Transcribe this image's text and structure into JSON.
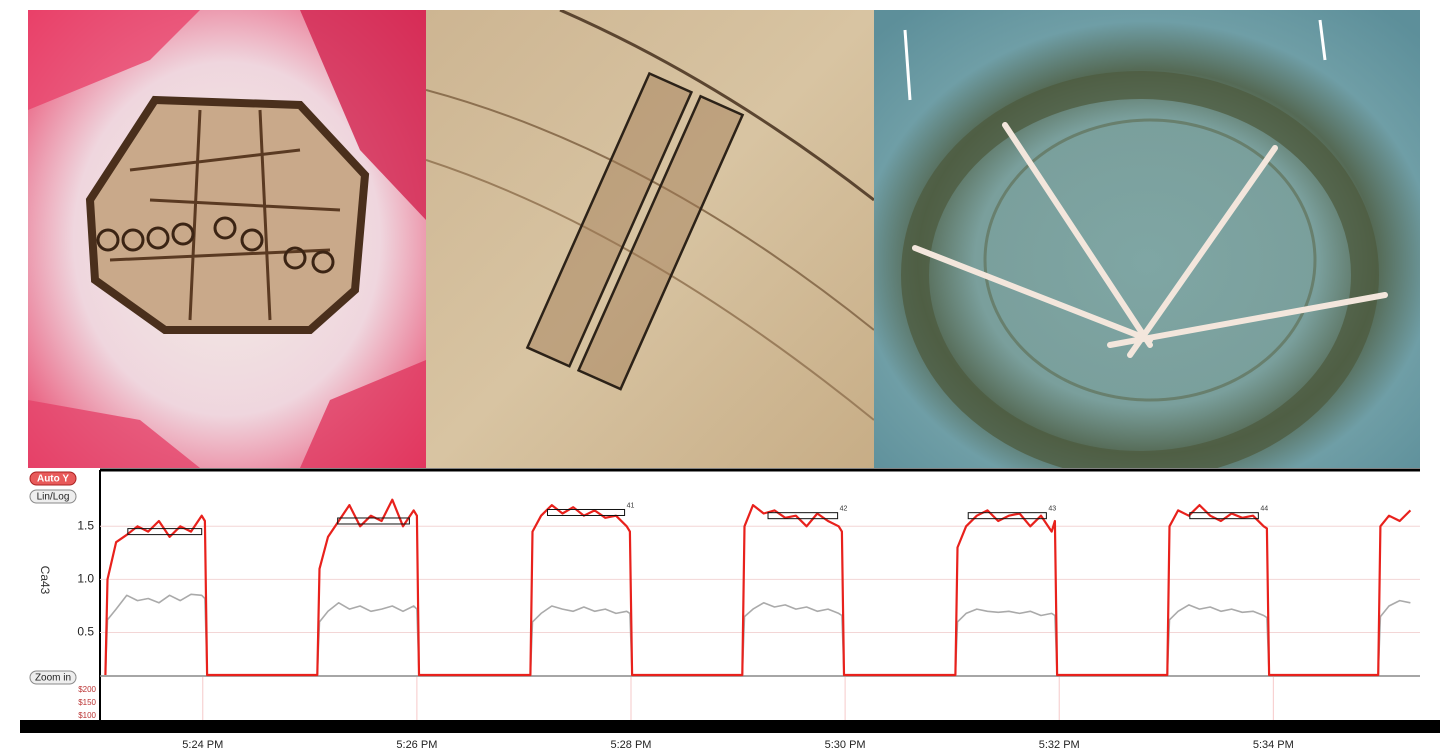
{
  "chart_data": {
    "type": "line",
    "y_label": "Ca43",
    "xlim": [
      23.04,
      35.37
    ],
    "xticks": [
      {
        "value": 24,
        "label": "5:24 PM"
      },
      {
        "value": 26,
        "label": "5:26 PM"
      },
      {
        "value": 28,
        "label": "5:28 PM"
      },
      {
        "value": 30,
        "label": "5:30 PM"
      },
      {
        "value": 32,
        "label": "5:32 PM"
      },
      {
        "value": 34,
        "label": "5:34 PM"
      }
    ],
    "ylim": [
      0.1,
      2.03
    ],
    "yticks": [
      0.5,
      {
        "value": 1,
        "label": "1.0"
      },
      1.5
    ],
    "grid": true,
    "x": [
      23.09,
      23.11,
      23.19,
      23.29,
      23.39,
      23.49,
      23.59,
      23.69,
      23.79,
      23.89,
      23.99,
      24.02,
      24.04,
      25.07,
      25.09,
      25.17,
      25.27,
      25.37,
      25.47,
      25.57,
      25.67,
      25.77,
      25.87,
      25.97,
      26.0,
      26.02,
      27.06,
      27.08,
      27.16,
      27.26,
      27.36,
      27.46,
      27.56,
      27.66,
      27.76,
      27.86,
      27.96,
      27.99,
      28.01,
      29.04,
      29.06,
      29.14,
      29.24,
      29.34,
      29.44,
      29.54,
      29.64,
      29.74,
      29.84,
      29.94,
      29.97,
      29.99,
      31.03,
      31.05,
      31.13,
      31.23,
      31.33,
      31.43,
      31.53,
      31.63,
      31.73,
      31.83,
      31.93,
      31.96,
      31.98,
      33.01,
      33.03,
      33.11,
      33.21,
      33.31,
      33.41,
      33.51,
      33.61,
      33.71,
      33.81,
      33.91,
      33.94,
      33.96,
      34.98,
      35.0,
      35.08,
      35.18,
      35.28
    ],
    "series": [
      {
        "color": "#aaaaaa",
        "values": [
          0.1,
          0.62,
          0.72,
          0.85,
          0.8,
          0.82,
          0.78,
          0.85,
          0.8,
          0.86,
          0.85,
          0.82,
          0.1,
          0.1,
          0.6,
          0.7,
          0.78,
          0.72,
          0.75,
          0.7,
          0.72,
          0.75,
          0.7,
          0.75,
          0.72,
          0.1,
          0.1,
          0.6,
          0.68,
          0.75,
          0.72,
          0.7,
          0.74,
          0.7,
          0.72,
          0.68,
          0.7,
          0.68,
          0.1,
          0.1,
          0.65,
          0.72,
          0.78,
          0.74,
          0.76,
          0.72,
          0.74,
          0.7,
          0.72,
          0.68,
          0.66,
          0.1,
          0.1,
          0.6,
          0.68,
          0.72,
          0.7,
          0.69,
          0.7,
          0.68,
          0.7,
          0.66,
          0.68,
          0.66,
          0.1,
          0.1,
          0.62,
          0.7,
          0.76,
          0.72,
          0.74,
          0.7,
          0.72,
          0.69,
          0.7,
          0.66,
          0.64,
          0.1,
          0.1,
          0.65,
          0.75,
          0.8,
          0.78
        ]
      },
      {
        "color": "#e8211c",
        "values": [
          0.1,
          1.0,
          1.35,
          1.42,
          1.5,
          1.45,
          1.55,
          1.4,
          1.5,
          1.45,
          1.6,
          1.55,
          0.1,
          0.1,
          1.1,
          1.4,
          1.55,
          1.7,
          1.5,
          1.6,
          1.55,
          1.75,
          1.5,
          1.65,
          1.6,
          0.1,
          0.1,
          1.45,
          1.6,
          1.7,
          1.62,
          1.68,
          1.6,
          1.65,
          1.58,
          1.6,
          1.5,
          1.45,
          0.1,
          0.1,
          1.5,
          1.7,
          1.62,
          1.65,
          1.58,
          1.6,
          1.5,
          1.62,
          1.55,
          1.5,
          1.45,
          0.1,
          0.1,
          1.3,
          1.5,
          1.6,
          1.65,
          1.55,
          1.6,
          1.62,
          1.5,
          1.6,
          1.45,
          1.55,
          0.1,
          0.1,
          1.5,
          1.65,
          1.6,
          1.7,
          1.6,
          1.55,
          1.62,
          1.58,
          1.6,
          1.5,
          1.48,
          0.1,
          0.1,
          1.5,
          1.6,
          1.55,
          1.65
        ]
      }
    ],
    "markers": [
      {
        "x": [
          23.3,
          23.99
        ],
        "y": 1.45
      },
      {
        "x": [
          25.26,
          25.93
        ],
        "y": 1.55
      },
      {
        "x": [
          27.22,
          27.94
        ],
        "y": 1.63,
        "label": "41"
      },
      {
        "x": [
          29.28,
          29.93
        ],
        "y": 1.6,
        "label": "42"
      },
      {
        "x": [
          31.15,
          31.88
        ],
        "y": 1.6,
        "label": "43"
      },
      {
        "x": [
          33.22,
          33.86
        ],
        "y": 1.6,
        "label": "44"
      }
    ]
  },
  "ui": {
    "buttons": [
      "Auto Y",
      "Lin/Log",
      "Zoom in"
    ],
    "lower_ticks": [
      "$200",
      "$150",
      "$100"
    ]
  }
}
